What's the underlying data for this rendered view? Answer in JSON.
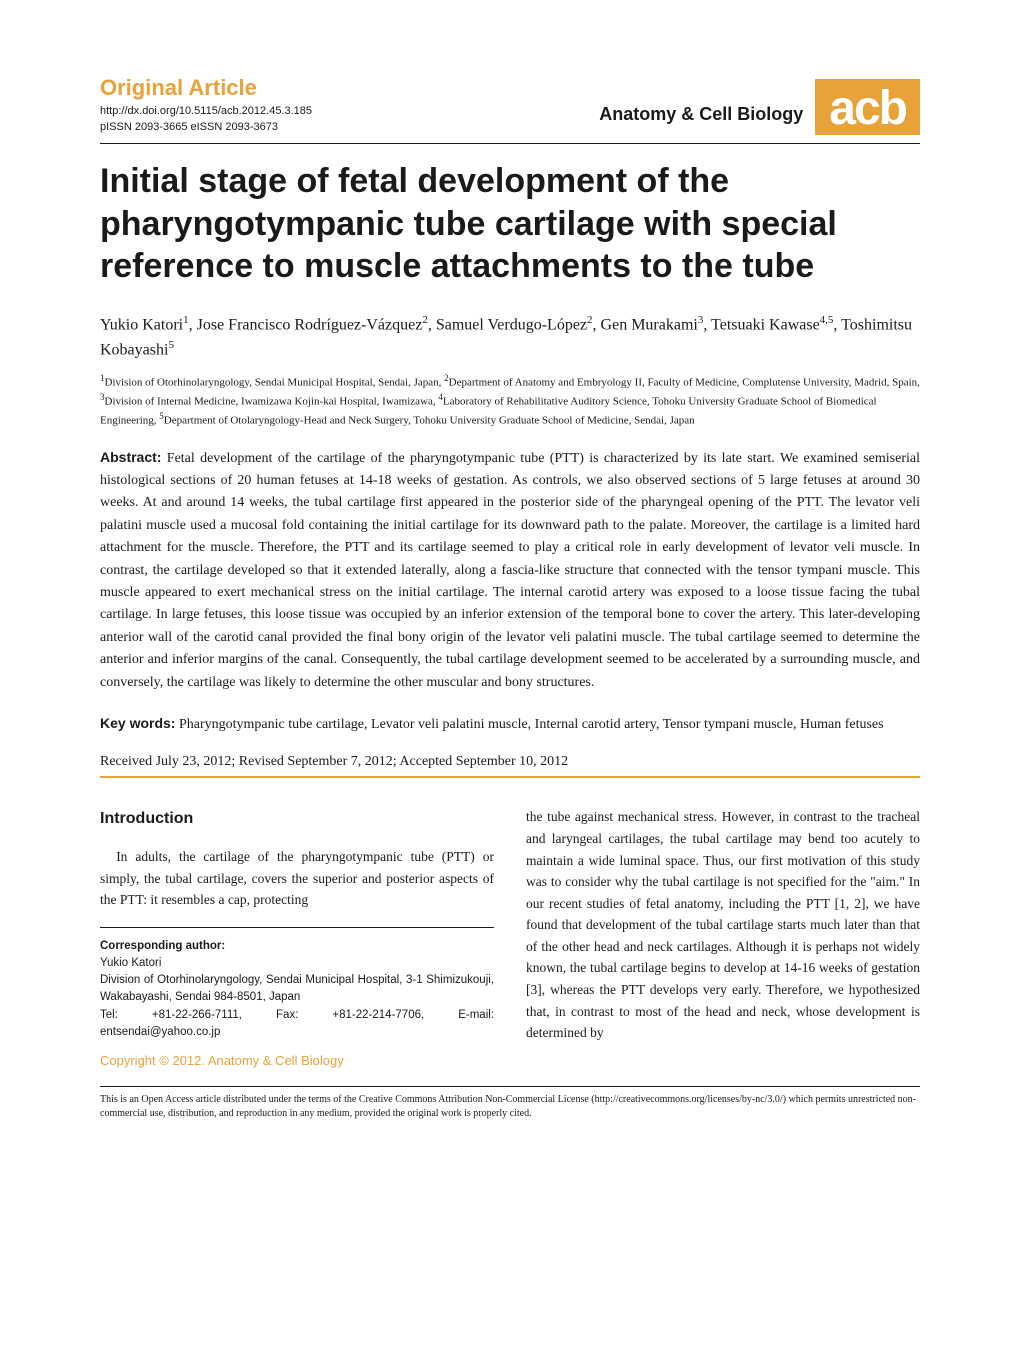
{
  "header": {
    "article_type": "Original Article",
    "doi_url": "http://dx.doi.org/10.5115/acb.2012.45.3.185",
    "issn": "pISSN 2093-3665   eISSN 2093-3673",
    "journal_name": "Anatomy & Cell Biology",
    "logo_text": "acb",
    "logo_bg_color": "#e8a23a",
    "logo_text_color": "#ffffff"
  },
  "title": "Initial stage of fetal development of the pharyngotympanic tube cartilage with special reference to muscle attachments to the tube",
  "authors_html": "Yukio Katori<sup>1</sup>, Jose Francisco Rodríguez-Vázquez<sup>2</sup>, Samuel Verdugo-López<sup>2</sup>, Gen Murakami<sup>3</sup>, Tetsuaki Kawase<sup>4,5</sup>, Toshimitsu Kobayashi<sup>5</sup>",
  "affiliations_html": "<sup>1</sup>Division of Otorhinolaryngology, Sendai Municipal Hospital, Sendai, Japan, <sup>2</sup>Department of Anatomy and Embryology II, Faculty of Medicine, Complutense University, Madrid, Spain, <sup>3</sup>Division of Internal Medicine, Iwamizawa Kojin-kai Hospital, Iwamizawa, <sup>4</sup>Laboratory of Rehabilitative Auditory Science, Tohoku University Graduate School of Biomedical Engineering, <sup>5</sup>Department of Otolaryngology-Head and Neck Surgery, Tohoku University Graduate School of Medicine, Sendai, Japan",
  "abstract": {
    "label": "Abstract:",
    "text": " Fetal development of the cartilage of the pharyngotympanic tube (PTT) is characterized by its late start. We examined semiserial histological sections of 20 human fetuses at 14-18 weeks of gestation. As controls, we also observed sections of 5 large fetuses at around 30 weeks. At and around 14 weeks, the tubal cartilage first appeared in the posterior side of the pharyngeal opening of the PTT. The levator veli palatini muscle used a mucosal fold containing the initial cartilage for its downward path to the palate. Moreover, the cartilage is a limited hard attachment for the muscle. Therefore, the PTT and its cartilage seemed to play a critical role in early development of levator veli muscle. In contrast, the cartilage developed so that it extended laterally, along a fascia-like structure that connected with the tensor tympani muscle. This muscle appeared to exert mechanical stress on the initial cartilage. The internal carotid artery was exposed to a loose tissue facing the tubal cartilage. In large fetuses, this loose tissue was occupied by an inferior extension of the temporal bone to cover the artery. This later-developing anterior wall of the carotid canal provided the final bony origin of the levator veli palatini muscle. The tubal cartilage seemed to determine the anterior and inferior margins of the canal. Consequently, the tubal cartilage development seemed to be accelerated by a surrounding muscle, and conversely, the cartilage was likely to determine the other muscular and bony structures."
  },
  "keywords": {
    "label": "Key words:",
    "text": " Pharyngotympanic tube cartilage, Levator veli palatini muscle, Internal carotid artery, Tensor tympani muscle, Human fetuses"
  },
  "dates": "Received July 23, 2012; Revised September 7, 2012; Accepted September 10, 2012",
  "introduction": {
    "heading": "Introduction",
    "left_para": "In adults, the cartilage of the pharyngotympanic tube (PTT) or simply, the tubal cartilage, covers the superior and posterior aspects of the PTT: it resembles a cap, protecting",
    "right_para": "the tube against mechanical stress. However, in contrast to the tracheal and laryngeal cartilages, the tubal cartilage may bend too acutely to maintain a wide luminal space. Thus, our first motivation of this study was to consider why the tubal cartilage is not specified for the \"aim.\" In our recent studies of fetal anatomy, including the PTT [1, 2], we have found that development of the tubal cartilage starts much later than that of the other head and neck cartilages. Although it is perhaps not widely known, the tubal cartilage begins to develop at 14-16 weeks of gestation [3], whereas the PTT develops very early. Therefore, we hypothesized that, in contrast to most of the head and neck, whose development is determined by"
  },
  "corresponding": {
    "label": "Corresponding author:",
    "name": "Yukio Katori",
    "address": "Division of Otorhinolaryngology, Sendai Municipal Hospital, 3-1 Shimizukouji, Wakabayashi, Sendai 984-8501, Japan",
    "contact": "Tel: +81-22-266-7111, Fax: +81-22-214-7706, E-mail: entsendai@yahoo.co.jp"
  },
  "copyright": "Copyright © 2012. Anatomy & Cell Biology",
  "footer": "This is an Open Access article distributed under the terms of the Creative Commons Attribution Non-Commercial License (http://creativecommons.org/licenses/by-nc/3.0/) which permits unrestricted non-commercial use, distribution, and reproduction in any medium, provided the original work is properly cited.",
  "colors": {
    "accent": "#e8a23a",
    "text": "#1a1a1a",
    "background": "#ffffff"
  }
}
